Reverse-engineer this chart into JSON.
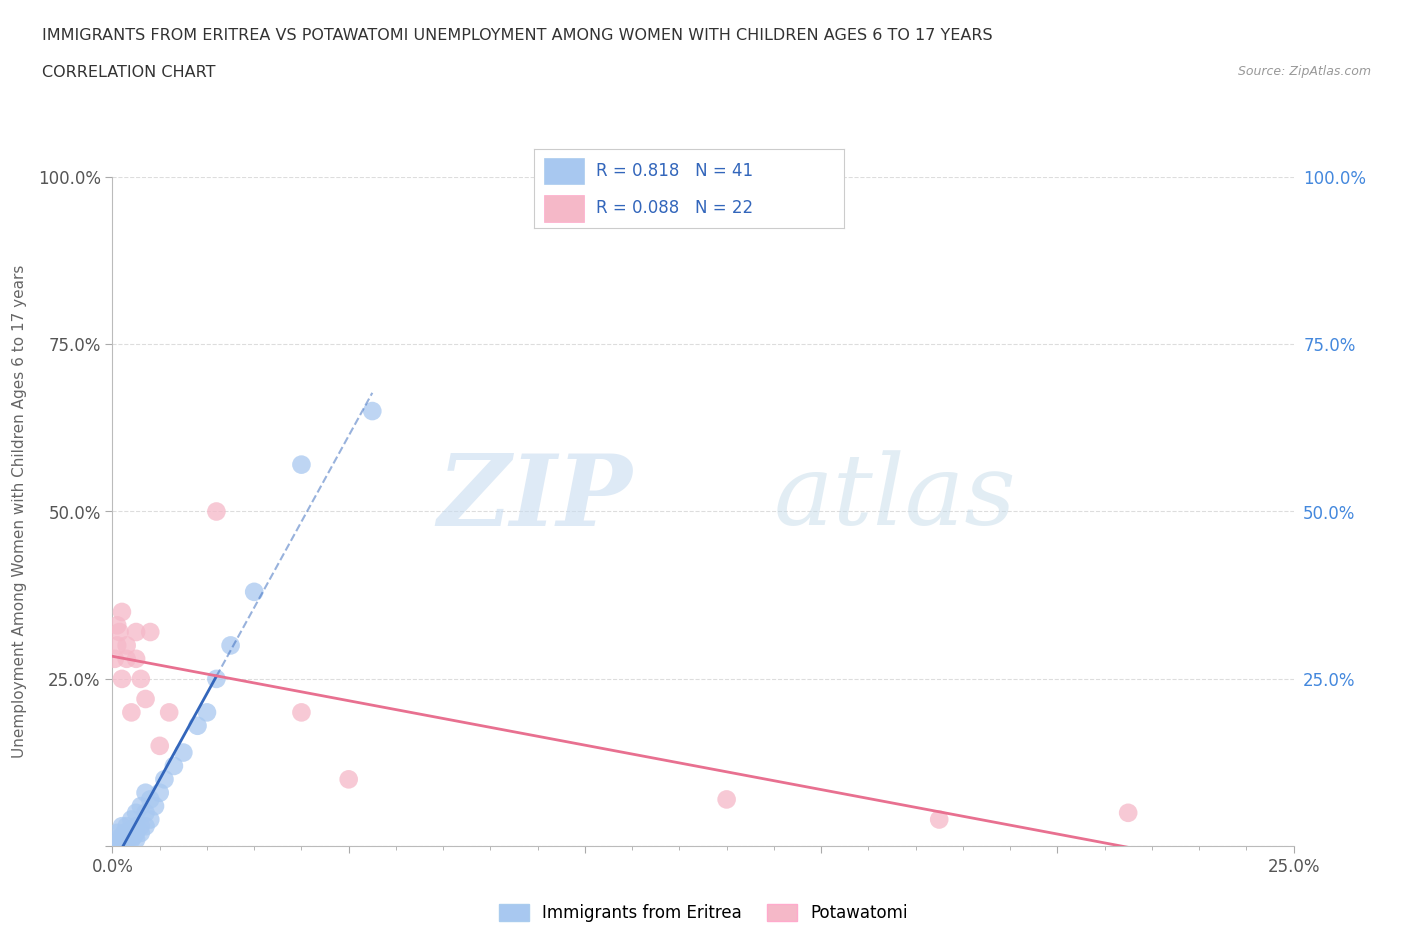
{
  "title_line1": "IMMIGRANTS FROM ERITREA VS POTAWATOMI UNEMPLOYMENT AMONG WOMEN WITH CHILDREN AGES 6 TO 17 YEARS",
  "title_line2": "CORRELATION CHART",
  "source": "Source: ZipAtlas.com",
  "ylabel": "Unemployment Among Women with Children Ages 6 to 17 years",
  "xlim": [
    0.0,
    0.25
  ],
  "ylim": [
    0.0,
    1.0
  ],
  "xticks": [
    0.0,
    0.05,
    0.1,
    0.15,
    0.2,
    0.25
  ],
  "xticklabels": [
    "0.0%",
    "",
    "",
    "",
    "",
    "25.0%"
  ],
  "yticks": [
    0.0,
    0.25,
    0.5,
    0.75,
    1.0
  ],
  "left_yticklabels": [
    "",
    "25.0%",
    "50.0%",
    "75.0%",
    "100.0%"
  ],
  "right_yticklabels": [
    "",
    "25.0%",
    "50.0%",
    "75.0%",
    "100.0%"
  ],
  "blue_R": 0.818,
  "blue_N": 41,
  "pink_R": 0.088,
  "pink_N": 22,
  "blue_color": "#A8C8F0",
  "pink_color": "#F5B8C8",
  "blue_line_color": "#3366BB",
  "pink_line_color": "#E87090",
  "legend_label1": "Immigrants from Eritrea",
  "legend_label2": "Potawatomi",
  "blue_scatter_x": [
    0.0005,
    0.001,
    0.001,
    0.0015,
    0.002,
    0.002,
    0.002,
    0.0025,
    0.003,
    0.003,
    0.003,
    0.003,
    0.0035,
    0.004,
    0.004,
    0.004,
    0.0045,
    0.005,
    0.005,
    0.005,
    0.005,
    0.006,
    0.006,
    0.006,
    0.007,
    0.007,
    0.007,
    0.008,
    0.008,
    0.009,
    0.01,
    0.011,
    0.013,
    0.015,
    0.018,
    0.02,
    0.022,
    0.025,
    0.03,
    0.04,
    0.055
  ],
  "blue_scatter_y": [
    0.01,
    0.005,
    0.02,
    0.005,
    0.01,
    0.015,
    0.03,
    0.02,
    0.005,
    0.01,
    0.02,
    0.03,
    0.02,
    0.01,
    0.025,
    0.04,
    0.015,
    0.01,
    0.02,
    0.03,
    0.05,
    0.02,
    0.03,
    0.06,
    0.03,
    0.05,
    0.08,
    0.04,
    0.07,
    0.06,
    0.08,
    0.1,
    0.12,
    0.14,
    0.18,
    0.2,
    0.25,
    0.3,
    0.38,
    0.57,
    0.65
  ],
  "pink_scatter_x": [
    0.0005,
    0.001,
    0.001,
    0.0015,
    0.002,
    0.002,
    0.003,
    0.003,
    0.004,
    0.005,
    0.005,
    0.006,
    0.007,
    0.008,
    0.01,
    0.012,
    0.022,
    0.04,
    0.05,
    0.13,
    0.175,
    0.215
  ],
  "pink_scatter_y": [
    0.28,
    0.3,
    0.33,
    0.32,
    0.25,
    0.35,
    0.28,
    0.3,
    0.2,
    0.32,
    0.28,
    0.25,
    0.22,
    0.32,
    0.15,
    0.2,
    0.5,
    0.2,
    0.1,
    0.07,
    0.04,
    0.05
  ],
  "background_color": "#FFFFFF",
  "grid_color": "#DDDDDD",
  "watermark_zip": "ZIP",
  "watermark_atlas": "atlas"
}
